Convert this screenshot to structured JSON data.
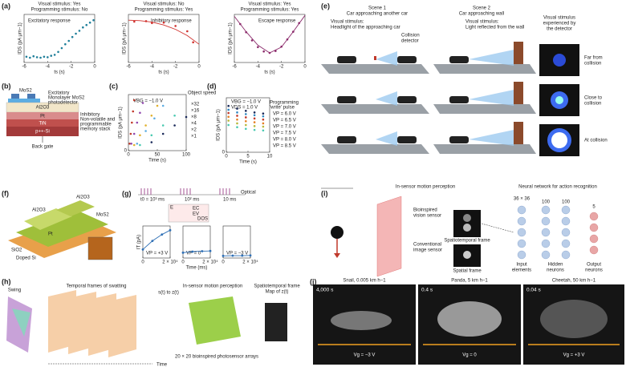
{
  "panels": {
    "a": {
      "label": "(a)"
    },
    "b": {
      "label": "(b)",
      "texts": [
        "MoS2",
        "Excitatory",
        "Monolayer MoS2",
        "photodetector",
        "Al2O3",
        "Pt",
        "TiN",
        "p++-Si",
        "Inhibitory",
        "Non-volatile and",
        "programmable",
        "memory stack",
        "Back gate"
      ]
    },
    "c": {
      "label": "(c)"
    },
    "d": {
      "label": "(d)"
    },
    "e": {
      "label": "(e)",
      "texts": [
        "Scene 1",
        "Car approaching another car",
        "Visual stimulus:",
        "Headlight of the approaching car",
        "Collision",
        "detector",
        "Scene 2",
        "Car approaching wall",
        "Visual stimulus:",
        "Light reflected from the wall",
        "Visual stimulus",
        "experienced by",
        "the detector",
        "Far from",
        "collision",
        "Close to",
        "collision",
        "At collision"
      ]
    },
    "f": {
      "label": "(f)",
      "texts": [
        "Al2O3",
        "MoS2",
        "Al2O3",
        "Pt",
        "SiO2",
        "Doped Si"
      ]
    },
    "g": {
      "label": "(g)",
      "texts": [
        "Optical",
        "t0 = 10³ ms",
        "10² ms",
        "10 ms",
        "DOS",
        "EC",
        "EV",
        "E"
      ]
    },
    "h": {
      "label": "(h)",
      "texts": [
        "Swing",
        "Temporal frames of swatting",
        "In-sensor motion perception",
        "s(t) to z(t)",
        "Spatiotemporal frame",
        "Map of z(t)",
        "20 × 20 bioinspired photosensor arrays",
        "Time"
      ]
    },
    "i": {
      "label": "(i)",
      "texts": [
        "In-sensor motion perception",
        "Neural network for action recognition",
        "Bioinspired",
        "vision sensor",
        "Spatiotemporal frame",
        "Conventional",
        "image sensor",
        "Spatial frame",
        "36 × 36",
        "100",
        "100",
        "5",
        "Input",
        "elements",
        "Hidden",
        "neurons",
        "Output",
        "neurons"
      ]
    },
    "j": {
      "label": "(j)",
      "texts": [
        "Snail, 0.005 km h−1",
        "Panda, 5 km h−1",
        "Cheetah, 50 km h−1",
        "4,000 s",
        "0.4 s",
        "0.04 s",
        "Vg = −3 V",
        "Vg = 0",
        "Vg = +3 V"
      ]
    }
  },
  "chart_data": [
    {
      "type": "scatter",
      "title": "Visual stimulus: Yes",
      "subtitle": "Programming stimulus: No",
      "annotations": [
        "Excitatory response"
      ],
      "annotation_color": "#1f7f9a",
      "xlabel": "ts (s)",
      "ylabel": "IDS (pA μm−1)",
      "xlim": [
        -6,
        0
      ],
      "xticks": [
        -6,
        -4,
        -2,
        0
      ],
      "ylim": [
        0,
        10
      ],
      "yticks": [],
      "series": [
        {
          "mode": "markers",
          "color": "#1f7f9a",
          "x": [
            -5.8,
            -5.5,
            -5.2,
            -4.9,
            -4.6,
            -4.3,
            -4,
            -3.7,
            -3.4,
            -3.1,
            -2.8,
            -2.5,
            -2.2,
            -1.9,
            -1.6,
            -1.3,
            -1,
            -0.7,
            -0.4,
            -0.1
          ],
          "values": [
            1.2,
            1.0,
            1.3,
            1.1,
            1.0,
            1.2,
            1.1,
            1.4,
            1.6,
            2.2,
            3,
            3.8,
            4.5,
            5.3,
            6,
            6.6,
            7.3,
            7.8,
            8.3,
            8.8
          ]
        }
      ]
    },
    {
      "type": "scatter",
      "title": "Visual stimulus: No",
      "subtitle": "Programming stimulus: Yes",
      "annotations": [
        "Inhibitory response"
      ],
      "annotation_color": "#d0312d",
      "xlabel": "ts (s)",
      "ylabel": "IDS (pA μm−1)",
      "xlim": [
        -6,
        0
      ],
      "xticks": [
        -6,
        -4,
        -2,
        0
      ],
      "ylim": [
        0,
        10
      ],
      "yticks": [],
      "series": [
        {
          "mode": "markers",
          "color": "#d0312d",
          "x": [
            -5.5,
            -4.5,
            -4,
            -3,
            -2,
            -1,
            -0.5
          ],
          "values": [
            8.5,
            8.6,
            8.2,
            8.3,
            7.6,
            6.5,
            4.2
          ]
        },
        {
          "mode": "line",
          "color": "#d0312d",
          "x": [
            -6,
            -5,
            -4,
            -3,
            -2,
            -1,
            0
          ],
          "values": [
            8.8,
            8.7,
            8.4,
            7.8,
            6.9,
            5.6,
            3.8
          ]
        }
      ]
    },
    {
      "type": "scatter",
      "title": "Visual stimulus: Yes",
      "subtitle": "Programming stimulus: Yes",
      "annotations": [
        "Escape response"
      ],
      "annotation_color": "#8b2a6b",
      "xlabel": "ts (s)",
      "ylabel": "IDS (pA μm−1)",
      "xlim": [
        -6,
        0
      ],
      "xticks": [
        -6,
        -4,
        -2,
        0
      ],
      "ylim": [
        0,
        10
      ],
      "yticks": [],
      "series": [
        {
          "mode": "markers",
          "color": "#8b2a6b",
          "x": [
            -5.5,
            -5,
            -4.5,
            -4,
            -3.5,
            -3,
            -2.5,
            -2,
            -1.5,
            -1,
            -0.5
          ],
          "values": [
            8,
            6.3,
            4.6,
            3.2,
            2.3,
            2,
            2.4,
            3.3,
            4.8,
            6.4,
            8.2
          ]
        },
        {
          "mode": "line",
          "color": "#8b2a6b",
          "x": [
            -6,
            -5,
            -4,
            -3,
            -2,
            -1,
            0
          ],
          "values": [
            9.6,
            6.4,
            3.6,
            2.0,
            3.2,
            6.4,
            9.8
          ]
        }
      ]
    },
    {
      "type": "scatter",
      "annotations": [
        "VBG = −1.0 V"
      ],
      "legend_title": [
        "Object speed"
      ],
      "xlabel": "Time (s)",
      "ylabel": "IDS (pA μm−1)",
      "xlim": [
        0,
        100
      ],
      "xticks": [
        0,
        50,
        100
      ],
      "ylim": [
        0,
        40
      ],
      "yticks": [
        0
      ],
      "series": [
        {
          "name": "×32",
          "mode": "markers",
          "color": "#c0392b",
          "x": [
            2,
            4,
            6,
            8,
            10
          ],
          "values": [
            5,
            12,
            20,
            28,
            36
          ]
        },
        {
          "name": "×16",
          "mode": "markers",
          "color": "#8e44ad",
          "x": [
            5,
            10,
            15,
            20,
            25
          ],
          "values": [
            5,
            12,
            20,
            27,
            34
          ]
        },
        {
          "name": "×8",
          "mode": "markers",
          "color": "#e1b12c",
          "x": [
            10,
            20,
            30,
            40,
            50
          ],
          "values": [
            4,
            11,
            18,
            25,
            32
          ]
        },
        {
          "name": "×4",
          "mode": "markers",
          "color": "#5dade2",
          "x": [
            15,
            30,
            45,
            60
          ],
          "values": [
            5,
            14,
            23,
            32
          ]
        },
        {
          "name": "×2",
          "mode": "markers",
          "color": "#48c9b0",
          "x": [
            20,
            40,
            60,
            80
          ],
          "values": [
            4,
            11,
            18,
            25
          ]
        },
        {
          "name": "×1",
          "mode": "markers",
          "color": "#1b2a5a",
          "x": [
            40,
            60,
            80,
            100
          ],
          "values": [
            6,
            12,
            18,
            24
          ]
        }
      ]
    },
    {
      "type": "scatter",
      "annotations": [
        "VBG = −1.0 V",
        "VDS = 1.0 V"
      ],
      "legend_title": [
        "Programming",
        "'write' pulse"
      ],
      "xlabel": "Time (s)",
      "ylabel": "IDS (pA μm−1)",
      "xlim": [
        0,
        10
      ],
      "xticks": [
        0,
        5,
        10
      ],
      "ylim": [
        0,
        10
      ],
      "yticks": [
        0
      ],
      "series": [
        {
          "name": "VP = 6.0 V",
          "mode": "markers",
          "color": "#1b2a5a",
          "x": [
            0.5,
            2.5,
            4.5,
            6.5,
            8.5
          ],
          "values": [
            8.5,
            8,
            7.6,
            7.3,
            7.1
          ]
        },
        {
          "name": "VP = 6.5 V",
          "mode": "markers",
          "color": "#2e86c1",
          "x": [
            0.5,
            2.5,
            4.5,
            6.5,
            8.5
          ],
          "values": [
            7.8,
            7.3,
            7,
            6.8,
            6.6
          ]
        },
        {
          "name": "VP = 7.0 V",
          "mode": "markers",
          "color": "#c0392b",
          "x": [
            0.5,
            2.5,
            4.5,
            6.5,
            8.5
          ],
          "values": [
            7.2,
            6.7,
            6.4,
            6.2,
            6
          ]
        },
        {
          "name": "VP = 7.5 V",
          "mode": "markers",
          "color": "#e67e22",
          "x": [
            0.5,
            2.5,
            4.5,
            6.5,
            8.5
          ],
          "values": [
            6.5,
            6,
            5.7,
            5.5,
            5.3
          ]
        },
        {
          "name": "VP = 8.0 V",
          "mode": "markers",
          "color": "#b7b73a",
          "x": [
            0.5,
            2.5,
            4.5,
            6.5,
            8.5
          ],
          "values": [
            5.8,
            5.3,
            5,
            4.8,
            4.7
          ]
        },
        {
          "name": "VP = 8.5 V",
          "mode": "markers",
          "color": "#48c9b0",
          "x": [
            0.5,
            2.5,
            4.5,
            6.5,
            8.5
          ],
          "values": [
            5,
            4.6,
            4.3,
            4.1,
            4
          ]
        }
      ]
    },
    {
      "type": "line",
      "annotations": [
        "VP = +3 V"
      ],
      "ylabel": "IT (pA)",
      "xlim": [
        0,
        20000
      ],
      "xticks": [
        0,
        {
          "value": 20000,
          "label": "2 × 10⁴"
        }
      ],
      "ylim": [
        0,
        15
      ],
      "yticks": [],
      "series": [
        {
          "mode": "line",
          "color": "#2e6fb5",
          "x": [
            0,
            7000,
            14000,
            20000
          ],
          "values": [
            4,
            8,
            11,
            13
          ]
        }
      ]
    },
    {
      "type": "line",
      "annotations": [
        "VP = 0"
      ],
      "xlabel": "Time (ms)",
      "xlim": [
        0,
        20000
      ],
      "xticks": [
        0,
        {
          "value": 20000,
          "label": "2 × 10⁴"
        }
      ],
      "ylim": [
        0,
        15
      ],
      "yticks": [],
      "series": [
        {
          "mode": "line",
          "color": "#2e6fb5",
          "x": [
            0,
            7000,
            14000,
            20000
          ],
          "values": [
            2.5,
            3,
            3.2,
            3.3
          ]
        }
      ]
    },
    {
      "type": "line",
      "annotations": [
        "VP = −3 V"
      ],
      "xlim": [
        0,
        20000
      ],
      "xticks": [
        0,
        {
          "value": 20000,
          "label": "2 × 10⁴"
        }
      ],
      "ylim": [
        0,
        15
      ],
      "yticks": [],
      "series": [
        {
          "mode": "line",
          "color": "#2e6fb5",
          "x": [
            0,
            7000,
            14000,
            20000
          ],
          "values": [
            1,
            1.1,
            1.1,
            1.2
          ]
        }
      ]
    }
  ]
}
